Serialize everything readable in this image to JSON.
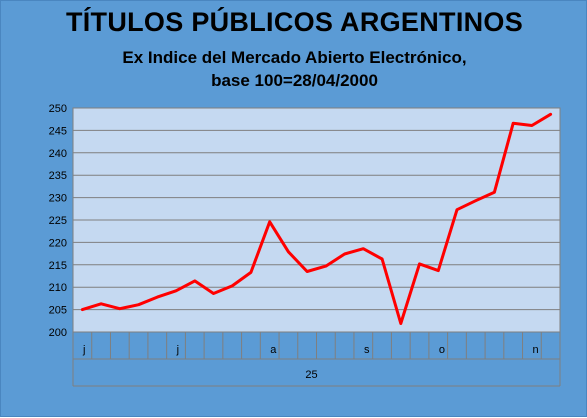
{
  "chart_data": {
    "type": "line",
    "title": "TÍTULOS PÚBLICOS ARGENTINOS",
    "subtitle_lines": [
      "Ex Indice del Mercado Abierto Electrónico,",
      "base 100=28/04/2000"
    ],
    "ylim": [
      200,
      250
    ],
    "yticks": [
      200,
      205,
      210,
      215,
      220,
      225,
      230,
      235,
      240,
      245,
      250
    ],
    "grid": true,
    "x_month_labels": [
      {
        "index": 0,
        "label": "j"
      },
      {
        "index": 5,
        "label": "j"
      },
      {
        "index": 10,
        "label": "a"
      },
      {
        "index": 15,
        "label": "s"
      },
      {
        "index": 19,
        "label": "o"
      },
      {
        "index": 24,
        "label": "n"
      }
    ],
    "x_group_label": "25",
    "series": [
      {
        "color": "#ff0000",
        "values": [
          205.0,
          206.3,
          205.2,
          206.1,
          207.8,
          209.2,
          211.4,
          208.6,
          210.3,
          213.3,
          224.6,
          217.9,
          213.5,
          214.7,
          217.4,
          218.6,
          216.3,
          201.9,
          215.2,
          213.7,
          227.3,
          229.3,
          231.2,
          246.6,
          246.1,
          248.6
        ]
      }
    ]
  }
}
